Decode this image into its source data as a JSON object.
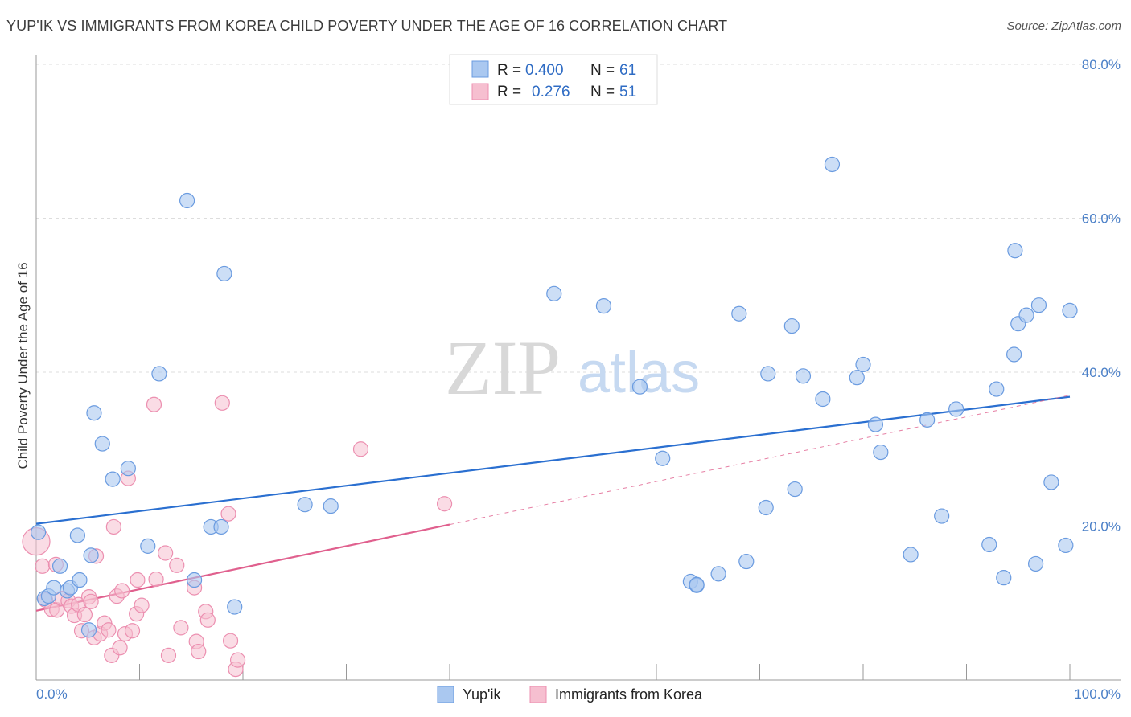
{
  "title": "YUP'IK VS IMMIGRANTS FROM KOREA CHILD POVERTY UNDER THE AGE OF 16 CORRELATION CHART",
  "source": "Source: ZipAtlas.com",
  "watermark": {
    "zip": "ZIP",
    "atlas": "atlas"
  },
  "colors": {
    "blue_fill": "#aac8f0",
    "blue_stroke": "#6a9be0",
    "blue_line": "#2a6fd0",
    "pink_fill": "#f6bfd0",
    "pink_stroke": "#ec8fb0",
    "pink_line": "#e0608e",
    "grid": "#dddddd",
    "axis_text": "#4a7fc7"
  },
  "legend": {
    "rows": [
      {
        "r_label": "R =",
        "r_value": "0.400",
        "n_label": "N =",
        "n_value": "61"
      },
      {
        "r_label": "R =",
        "r_value": "0.276",
        "n_label": "N =",
        "n_value": "51"
      }
    ]
  },
  "chart_data": {
    "type": "scatter",
    "title": "YUP'IK VS IMMIGRANTS FROM KOREA CHILD POVERTY UNDER THE AGE OF 16 CORRELATION CHART",
    "xlabel": "",
    "ylabel": "Child Poverty Under the Age of 16",
    "xlim": [
      0,
      100
    ],
    "ylim": [
      0,
      80
    ],
    "x_tick_labels": [
      "0.0%",
      "100.0%"
    ],
    "y_ticks": [
      20,
      40,
      60,
      80
    ],
    "y_tick_labels": [
      "20.0%",
      "40.0%",
      "60.0%",
      "80.0%"
    ],
    "grid": true,
    "legend_position": "top-center",
    "series": [
      {
        "name": "Yup'ik",
        "R": 0.4,
        "N": 61,
        "trend": {
          "x0": 0,
          "y0": 20.3,
          "x1": 100,
          "y1": 36.8,
          "solid_to": 100
        },
        "points": [
          {
            "x": 0.2,
            "y": 19.2
          },
          {
            "x": 0.8,
            "y": 10.6
          },
          {
            "x": 1.2,
            "y": 10.9
          },
          {
            "x": 1.7,
            "y": 12.0
          },
          {
            "x": 2.3,
            "y": 14.8
          },
          {
            "x": 3.0,
            "y": 11.6
          },
          {
            "x": 3.3,
            "y": 12.0
          },
          {
            "x": 4.0,
            "y": 18.8
          },
          {
            "x": 4.2,
            "y": 13.0
          },
          {
            "x": 5.1,
            "y": 6.5
          },
          {
            "x": 5.3,
            "y": 16.2
          },
          {
            "x": 5.6,
            "y": 34.7
          },
          {
            "x": 6.4,
            "y": 30.7
          },
          {
            "x": 7.4,
            "y": 26.1
          },
          {
            "x": 8.9,
            "y": 27.5
          },
          {
            "x": 10.8,
            "y": 17.4
          },
          {
            "x": 11.9,
            "y": 39.8
          },
          {
            "x": 14.6,
            "y": 62.3
          },
          {
            "x": 15.3,
            "y": 13.0
          },
          {
            "x": 16.9,
            "y": 19.9
          },
          {
            "x": 17.9,
            "y": 19.9
          },
          {
            "x": 18.2,
            "y": 52.8
          },
          {
            "x": 19.2,
            "y": 9.5
          },
          {
            "x": 26.0,
            "y": 22.8
          },
          {
            "x": 28.5,
            "y": 22.6
          },
          {
            "x": 50.1,
            "y": 50.2
          },
          {
            "x": 54.9,
            "y": 48.6
          },
          {
            "x": 58.4,
            "y": 38.1
          },
          {
            "x": 60.6,
            "y": 28.8
          },
          {
            "x": 63.3,
            "y": 12.8
          },
          {
            "x": 63.9,
            "y": 12.3
          },
          {
            "x": 63.9,
            "y": 12.4
          },
          {
            "x": 66.0,
            "y": 13.8
          },
          {
            "x": 68.0,
            "y": 47.6
          },
          {
            "x": 68.7,
            "y": 15.4
          },
          {
            "x": 70.6,
            "y": 22.4
          },
          {
            "x": 70.8,
            "y": 39.8
          },
          {
            "x": 73.1,
            "y": 46.0
          },
          {
            "x": 73.4,
            "y": 24.8
          },
          {
            "x": 74.2,
            "y": 39.5
          },
          {
            "x": 76.1,
            "y": 36.5
          },
          {
            "x": 77.0,
            "y": 67.0
          },
          {
            "x": 79.4,
            "y": 39.3
          },
          {
            "x": 80.0,
            "y": 41.0
          },
          {
            "x": 81.2,
            "y": 33.2
          },
          {
            "x": 81.7,
            "y": 29.6
          },
          {
            "x": 84.6,
            "y": 16.3
          },
          {
            "x": 86.2,
            "y": 33.8
          },
          {
            "x": 87.6,
            "y": 21.3
          },
          {
            "x": 89.0,
            "y": 35.2
          },
          {
            "x": 92.2,
            "y": 17.6
          },
          {
            "x": 92.9,
            "y": 37.8
          },
          {
            "x": 93.6,
            "y": 13.3
          },
          {
            "x": 94.6,
            "y": 42.3
          },
          {
            "x": 94.7,
            "y": 55.8
          },
          {
            "x": 95.0,
            "y": 46.3
          },
          {
            "x": 95.8,
            "y": 47.4
          },
          {
            "x": 96.7,
            "y": 15.1
          },
          {
            "x": 97.0,
            "y": 48.7
          },
          {
            "x": 98.2,
            "y": 25.7
          },
          {
            "x": 99.6,
            "y": 17.5
          },
          {
            "x": 100.0,
            "y": 48.0
          }
        ]
      },
      {
        "name": "Immigrants from Korea",
        "R": 0.276,
        "N": 51,
        "trend": {
          "x0": 0,
          "y0": 9.0,
          "x1": 100,
          "y1": 37.0,
          "solid_to": 40
        },
        "points": [
          {
            "x": 0.0,
            "y": 18.0,
            "big": true
          },
          {
            "x": 0.6,
            "y": 14.8
          },
          {
            "x": 0.9,
            "y": 10.4
          },
          {
            "x": 1.5,
            "y": 9.2
          },
          {
            "x": 1.9,
            "y": 15.0
          },
          {
            "x": 2.0,
            "y": 9.1
          },
          {
            "x": 2.5,
            "y": 10.6
          },
          {
            "x": 3.1,
            "y": 10.3
          },
          {
            "x": 3.4,
            "y": 9.6
          },
          {
            "x": 3.7,
            "y": 8.4
          },
          {
            "x": 4.1,
            "y": 9.8
          },
          {
            "x": 4.4,
            "y": 6.4
          },
          {
            "x": 4.7,
            "y": 8.5
          },
          {
            "x": 5.1,
            "y": 10.8
          },
          {
            "x": 5.3,
            "y": 10.2
          },
          {
            "x": 5.6,
            "y": 5.5
          },
          {
            "x": 5.8,
            "y": 16.1
          },
          {
            "x": 6.2,
            "y": 6.0
          },
          {
            "x": 6.6,
            "y": 7.4
          },
          {
            "x": 7.0,
            "y": 6.5
          },
          {
            "x": 7.3,
            "y": 3.2
          },
          {
            "x": 7.5,
            "y": 19.9
          },
          {
            "x": 7.8,
            "y": 10.9
          },
          {
            "x": 8.1,
            "y": 4.2
          },
          {
            "x": 8.3,
            "y": 11.6
          },
          {
            "x": 8.6,
            "y": 6.0
          },
          {
            "x": 8.9,
            "y": 26.2
          },
          {
            "x": 9.3,
            "y": 6.4
          },
          {
            "x": 9.7,
            "y": 8.6
          },
          {
            "x": 9.8,
            "y": 13.0
          },
          {
            "x": 10.2,
            "y": 9.7
          },
          {
            "x": 11.4,
            "y": 35.8
          },
          {
            "x": 11.6,
            "y": 13.1
          },
          {
            "x": 12.5,
            "y": 16.5
          },
          {
            "x": 12.8,
            "y": 3.2
          },
          {
            "x": 13.6,
            "y": 14.9
          },
          {
            "x": 14.0,
            "y": 6.8
          },
          {
            "x": 15.3,
            "y": 12.0
          },
          {
            "x": 15.5,
            "y": 5.0
          },
          {
            "x": 15.7,
            "y": 3.7
          },
          {
            "x": 16.4,
            "y": 8.9
          },
          {
            "x": 16.6,
            "y": 7.8
          },
          {
            "x": 18.0,
            "y": 36.0
          },
          {
            "x": 18.6,
            "y": 21.6
          },
          {
            "x": 18.8,
            "y": 5.1
          },
          {
            "x": 19.3,
            "y": 1.4
          },
          {
            "x": 19.5,
            "y": 2.6
          },
          {
            "x": 31.4,
            "y": 30.0
          },
          {
            "x": 39.5,
            "y": 22.9
          }
        ]
      }
    ]
  },
  "bottom_legend": [
    {
      "label": "Yup'ik"
    },
    {
      "label": "Immigrants from Korea"
    }
  ]
}
